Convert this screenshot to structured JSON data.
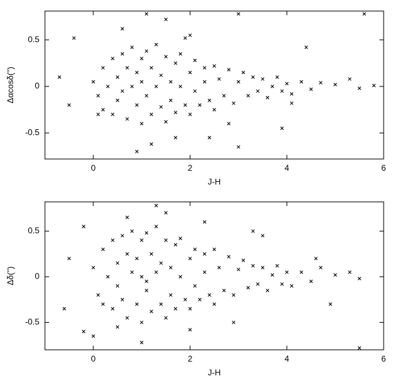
{
  "chart_data": [
    {
      "type": "scatter",
      "xlabel": "J-H",
      "ylabel": "Δαcosδ('')",
      "color": "#000000",
      "xlim": [
        -1,
        6
      ],
      "ylim": [
        -0.78,
        0.81
      ],
      "xticks": [
        0,
        2,
        4,
        6
      ],
      "yticks": [
        -0.5,
        0,
        0.5
      ],
      "x": [
        0.0,
        0.1,
        0.2,
        0.2,
        0.3,
        0.4,
        0.4,
        0.5,
        0.5,
        0.6,
        0.6,
        0.7,
        0.7,
        0.8,
        0.8,
        0.9,
        0.9,
        1.0,
        1.0,
        1.0,
        1.1,
        1.1,
        1.2,
        1.2,
        1.3,
        1.3,
        1.4,
        1.4,
        1.5,
        1.5,
        1.6,
        1.6,
        1.7,
        1.7,
        1.8,
        1.8,
        1.9,
        2.0,
        2.0,
        2.1,
        2.1,
        2.2,
        2.3,
        2.3,
        2.4,
        2.5,
        2.5,
        2.6,
        2.7,
        2.8,
        2.9,
        3.0,
        3.1,
        3.2,
        3.3,
        3.4,
        3.5,
        3.6,
        3.7,
        3.8,
        3.9,
        4.0,
        4.1,
        4.3,
        4.5,
        4.7,
        5.0,
        5.3,
        5.5,
        5.8,
        -0.4,
        -0.7,
        -0.5,
        1.1,
        1.5,
        0.9,
        1.2,
        2.0,
        2.4,
        3.0,
        3.0,
        3.9,
        4.4,
        5.6,
        0.1,
        1.9,
        2.8,
        4.1,
        1.7,
        0.6
      ],
      "y": [
        0.05,
        -0.1,
        0.2,
        -0.25,
        0.0,
        0.3,
        -0.3,
        0.1,
        -0.15,
        0.35,
        -0.05,
        0.2,
        -0.35,
        0.0,
        0.42,
        -0.2,
        0.15,
        0.3,
        -0.4,
        0.05,
        -0.1,
        0.38,
        0.2,
        -0.3,
        0.0,
        0.45,
        -0.22,
        0.12,
        0.32,
        -0.38,
        0.05,
        -0.15,
        0.25,
        -0.28,
        0.0,
        0.35,
        -0.2,
        0.15,
        -0.3,
        0.28,
        -0.05,
        -0.2,
        0.2,
        0.05,
        -0.15,
        0.22,
        -0.25,
        0.08,
        -0.1,
        0.18,
        -0.18,
        0.05,
        0.15,
        -0.1,
        0.1,
        -0.05,
        0.08,
        -0.12,
        0.0,
        0.1,
        -0.05,
        0.03,
        -0.08,
        0.05,
        -0.03,
        0.04,
        0.02,
        0.08,
        -0.02,
        0.01,
        0.52,
        0.1,
        -0.2,
        0.78,
        0.72,
        -0.7,
        -0.62,
        0.55,
        -0.55,
        0.78,
        -0.65,
        -0.45,
        0.42,
        0.78,
        -0.3,
        0.52,
        -0.4,
        -0.18,
        -0.55,
        0.62
      ]
    },
    {
      "type": "scatter",
      "xlabel": "J-H",
      "ylabel": "Δδ('')",
      "color": "#000000",
      "xlim": [
        -1,
        6
      ],
      "ylim": [
        -0.8,
        0.82
      ],
      "xticks": [
        0,
        2,
        4,
        6
      ],
      "yticks": [
        -0.5,
        0,
        0.5
      ],
      "x": [
        0.0,
        0.1,
        0.2,
        0.2,
        0.3,
        0.4,
        0.4,
        0.5,
        0.5,
        0.6,
        0.6,
        0.7,
        0.7,
        0.8,
        0.8,
        0.9,
        0.9,
        1.0,
        1.0,
        1.0,
        1.1,
        1.1,
        1.2,
        1.2,
        1.3,
        1.3,
        1.4,
        1.4,
        1.5,
        1.5,
        1.6,
        1.6,
        1.7,
        1.7,
        1.8,
        1.8,
        1.9,
        2.0,
        2.0,
        2.1,
        2.1,
        2.2,
        2.3,
        2.3,
        2.4,
        2.5,
        2.5,
        2.6,
        2.7,
        2.8,
        2.9,
        3.0,
        3.1,
        3.2,
        3.3,
        3.4,
        3.5,
        3.6,
        3.7,
        3.8,
        3.9,
        4.0,
        4.1,
        4.3,
        4.5,
        4.7,
        5.0,
        5.3,
        5.5,
        -0.2,
        -0.5,
        -0.6,
        -0.2,
        1.3,
        1.0,
        0.7,
        1.5,
        2.3,
        2.9,
        3.5,
        4.6,
        5.5,
        0.0,
        2.0,
        3.3,
        4.9,
        1.1,
        0.5
      ],
      "y": [
        0.1,
        -0.2,
        0.3,
        -0.3,
        0.0,
        0.4,
        -0.35,
        0.15,
        -0.1,
        0.45,
        -0.25,
        0.25,
        -0.45,
        0.05,
        0.5,
        -0.3,
        0.2,
        0.4,
        -0.5,
        0.0,
        -0.15,
        0.48,
        0.25,
        -0.38,
        0.05,
        0.55,
        -0.3,
        0.15,
        0.4,
        -0.45,
        0.1,
        -0.2,
        0.35,
        -0.35,
        0.0,
        0.42,
        -0.25,
        0.2,
        -0.35,
        0.3,
        -0.1,
        -0.25,
        0.25,
        0.05,
        -0.2,
        0.3,
        -0.3,
        0.1,
        -0.15,
        0.22,
        -0.2,
        0.08,
        0.18,
        -0.12,
        0.12,
        -0.08,
        0.1,
        -0.15,
        0.02,
        0.12,
        -0.08,
        0.05,
        -0.1,
        0.05,
        -0.05,
        0.1,
        0.02,
        0.05,
        -0.02,
        0.55,
        0.2,
        -0.35,
        -0.6,
        0.78,
        -0.72,
        0.65,
        0.7,
        0.6,
        -0.5,
        0.45,
        0.2,
        -0.78,
        -0.65,
        -0.58,
        0.5,
        -0.3,
        -0.05,
        -0.55
      ]
    }
  ]
}
